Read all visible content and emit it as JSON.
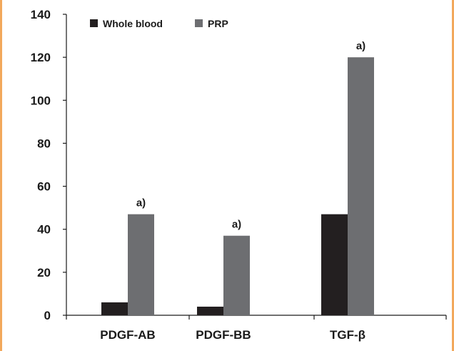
{
  "chart_data": {
    "type": "bar",
    "categories": [
      "PDGF-AB",
      "PDGF-BB",
      "TGF-β"
    ],
    "series": [
      {
        "name": "Whole blood",
        "values": [
          6,
          4,
          47
        ],
        "color": "#231f20"
      },
      {
        "name": "PRP",
        "values": [
          47,
          37,
          120
        ],
        "color": "#6d6e71"
      }
    ],
    "annotations": [
      {
        "category": "PDGF-AB",
        "series": "PRP",
        "text": "a)"
      },
      {
        "category": "PDGF-BB",
        "series": "PRP",
        "text": "a)"
      },
      {
        "category": "TGF-β",
        "series": "PRP",
        "text": "a)"
      }
    ],
    "ylim": [
      0,
      140
    ],
    "yticks": [
      0,
      20,
      40,
      60,
      80,
      100,
      120,
      140
    ],
    "legend_position": "top-left",
    "grid": false,
    "title": "",
    "xlabel": "",
    "ylabel": ""
  },
  "frame": {
    "border_color": "#f2a85c"
  }
}
